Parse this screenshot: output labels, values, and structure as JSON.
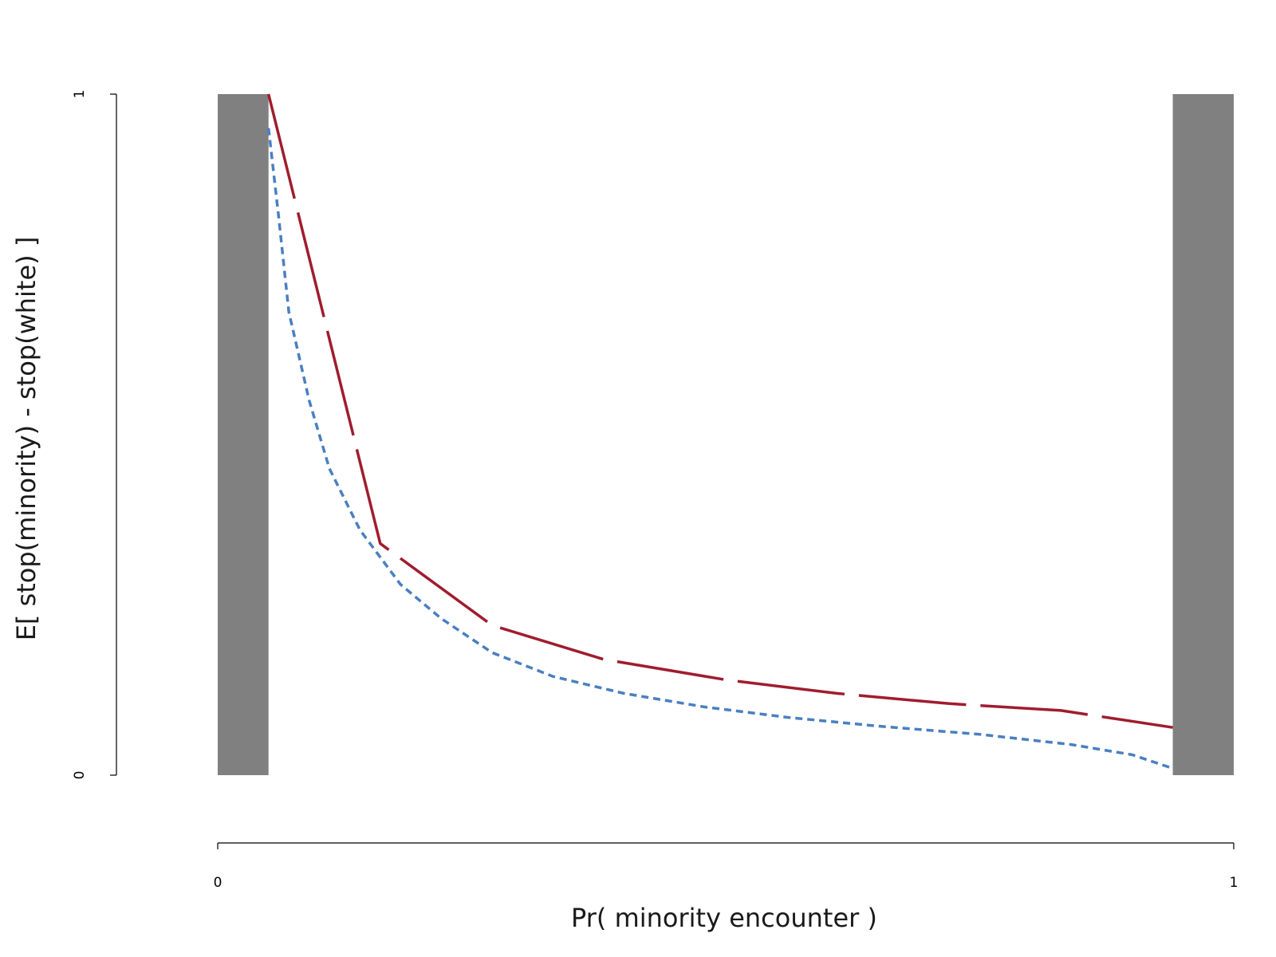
{
  "chart_data": {
    "type": "line",
    "title": "",
    "xlabel": "Pr( minority encounter )",
    "ylabel": "E[ stop(minority) - stop(white) ]",
    "xlim": [
      0,
      1
    ],
    "ylim": [
      0,
      1
    ],
    "x_ticks": [
      0,
      1
    ],
    "x_tick_labels": [
      "0",
      "1"
    ],
    "y_ticks": [
      0,
      1
    ],
    "y_tick_labels": [
      "0",
      "1"
    ],
    "grid": false,
    "shaded_regions": [
      {
        "name": "left-excluded-region",
        "x_start": 0.0,
        "x_end": 0.05,
        "color": "#808080"
      },
      {
        "name": "right-excluded-region",
        "x_start": 0.94,
        "x_end": 1.0,
        "color": "#808080"
      }
    ],
    "series": [
      {
        "name": "red-long-dash-curve",
        "color": "#a01c2e",
        "style": "longdash",
        "x": [
          0.05,
          0.16,
          0.27,
          0.38,
          0.5,
          0.61,
          0.72,
          0.83,
          0.94
        ],
        "y": [
          1.0,
          0.34,
          0.22,
          0.17,
          0.14,
          0.12,
          0.105,
          0.095,
          0.07
        ]
      },
      {
        "name": "blue-dotted-curve",
        "color": "#4a7fc1",
        "style": "dotted",
        "x": [
          0.05,
          0.06,
          0.07,
          0.09,
          0.11,
          0.14,
          0.18,
          0.22,
          0.27,
          0.33,
          0.4,
          0.48,
          0.56,
          0.65,
          0.75,
          0.84,
          0.9,
          0.94
        ],
        "y": [
          0.95,
          0.82,
          0.68,
          0.55,
          0.45,
          0.36,
          0.28,
          0.23,
          0.18,
          0.145,
          0.12,
          0.1,
          0.085,
          0.072,
          0.06,
          0.045,
          0.03,
          0.01
        ]
      }
    ]
  }
}
